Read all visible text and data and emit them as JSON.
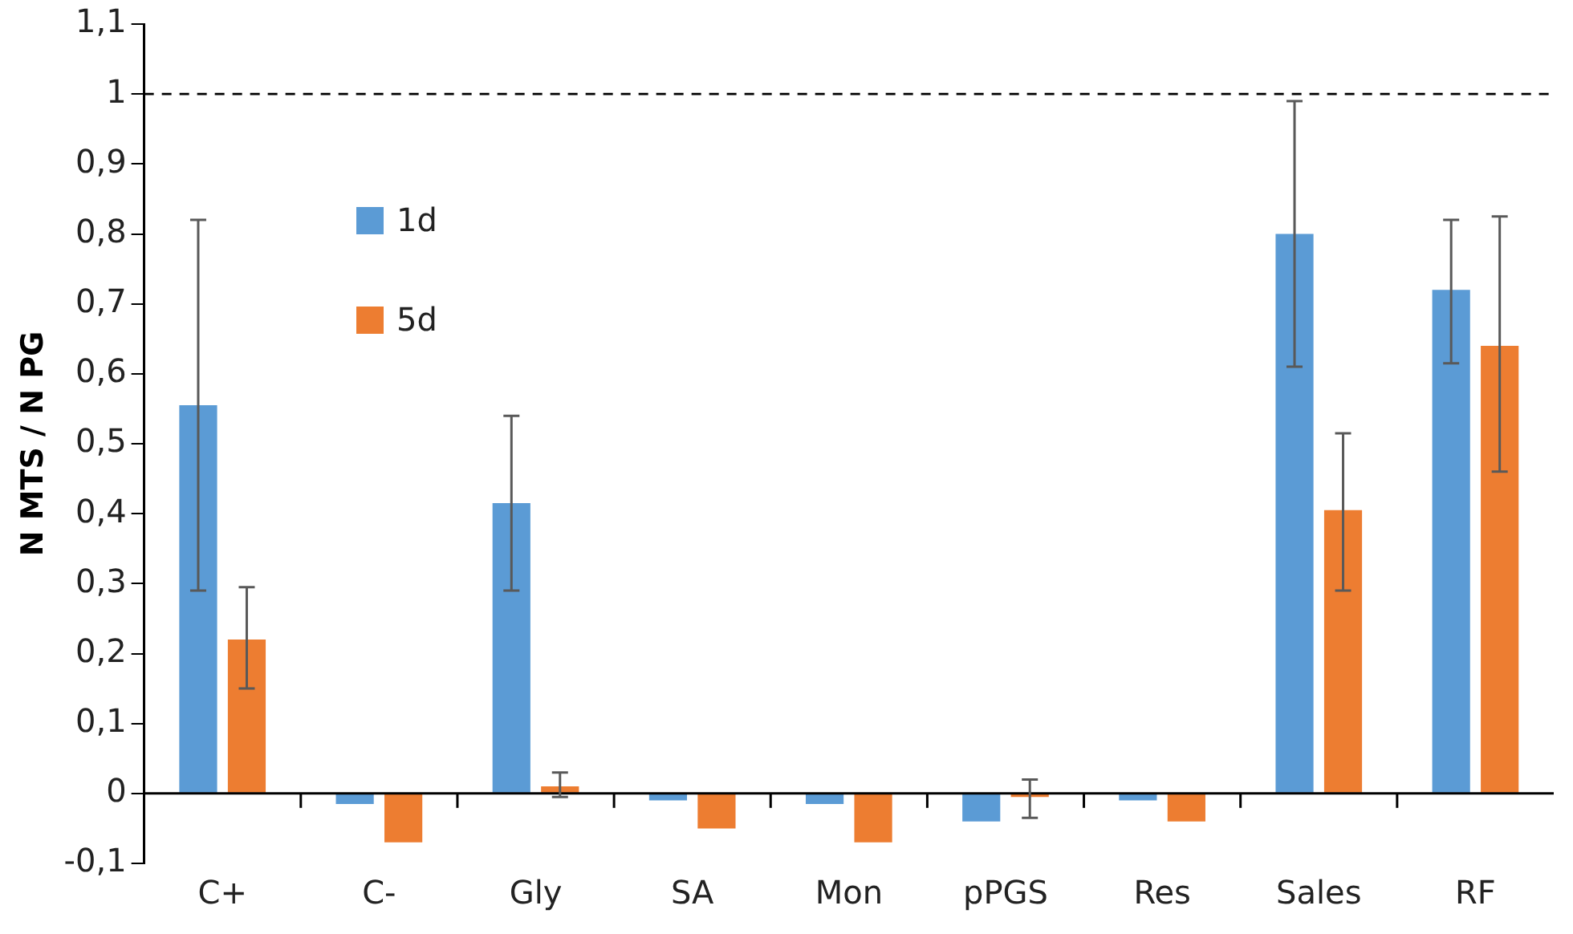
{
  "chart_data": {
    "type": "bar",
    "ylabel": "N MTS / N PG",
    "categories": [
      "C+",
      "C-",
      "Gly",
      "SA",
      "Mon",
      "pPGS",
      "Res",
      "Sales",
      "RF"
    ],
    "series": [
      {
        "name": "1d",
        "color": "#5b9bd5",
        "values": [
          0.555,
          -0.015,
          0.415,
          -0.01,
          -0.015,
          -0.04,
          -0.01,
          0.8,
          0.72
        ],
        "errors": [
          [
            0.29,
            0.82
          ],
          null,
          [
            0.29,
            0.54
          ],
          null,
          null,
          null,
          null,
          [
            0.61,
            0.99
          ],
          [
            0.615,
            0.82
          ]
        ]
      },
      {
        "name": "5d",
        "color": "#ed7d31",
        "values": [
          0.22,
          -0.07,
          0.01,
          -0.05,
          -0.07,
          -0.005,
          -0.04,
          0.405,
          0.64
        ],
        "errors": [
          [
            0.15,
            0.295
          ],
          null,
          [
            -0.005,
            0.03
          ],
          null,
          null,
          [
            -0.035,
            0.02
          ],
          null,
          [
            0.29,
            0.515
          ],
          [
            0.46,
            0.825
          ]
        ]
      }
    ],
    "ylim": [
      -0.1,
      1.1
    ],
    "yticks": [
      {
        "value": -0.1,
        "label": "-0,1"
      },
      {
        "value": 0,
        "label": "0"
      },
      {
        "value": 0.1,
        "label": "0,1"
      },
      {
        "value": 0.2,
        "label": "0,2"
      },
      {
        "value": 0.3,
        "label": "0,3"
      },
      {
        "value": 0.4,
        "label": "0,4"
      },
      {
        "value": 0.5,
        "label": "0,5"
      },
      {
        "value": 0.6,
        "label": "0,6"
      },
      {
        "value": 0.7,
        "label": "0,7"
      },
      {
        "value": 0.8,
        "label": "0,8"
      },
      {
        "value": 0.9,
        "label": "0,9"
      },
      {
        "value": 1,
        "label": "1"
      },
      {
        "value": 1.1,
        "label": "1,1"
      }
    ],
    "ref_lines": [
      {
        "axis": "y",
        "value": 1,
        "line_style": "dashed",
        "color": "#000000"
      }
    ],
    "grid": false,
    "legend": "top left"
  }
}
